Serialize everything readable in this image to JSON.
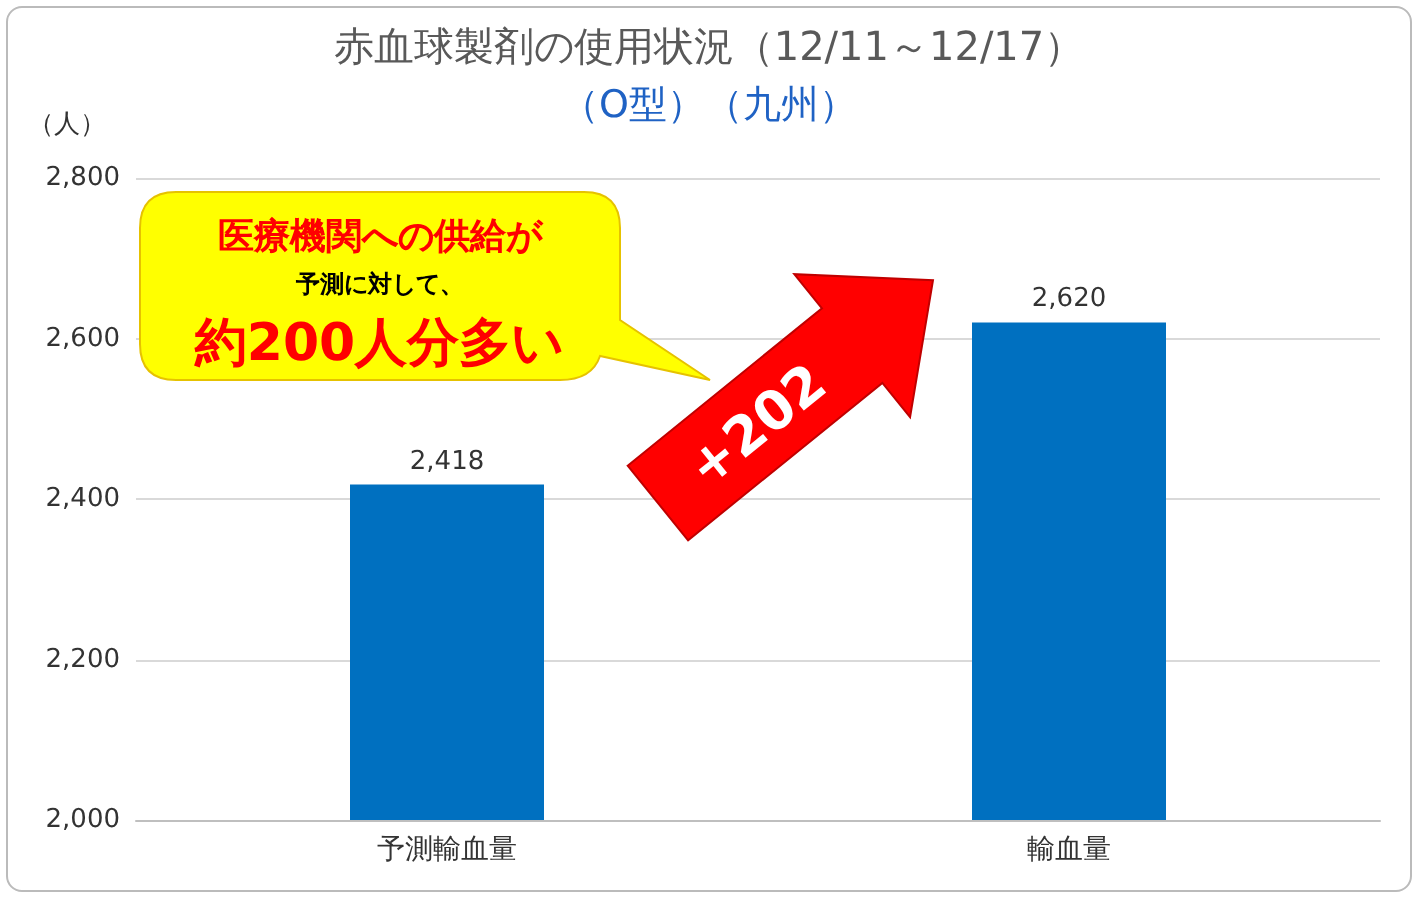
{
  "chart_data": {
    "type": "bar",
    "title": "赤血球製剤の使用状況（12/11～12/17）",
    "subtitle": "（O型）（九州）",
    "ylabel": "（人）",
    "categories": [
      "予測輸血量",
      "輸血量"
    ],
    "values": [
      2418,
      2620
    ],
    "color": "#0070c0",
    "value_labels": [
      "2,418",
      "2,620"
    ],
    "ylim": [
      2000,
      2800
    ],
    "yticks": [
      {
        "value": 2000,
        "label": "2,000"
      },
      {
        "value": 2200,
        "label": "2,200"
      },
      {
        "value": 2400,
        "label": "2,400"
      },
      {
        "value": 2600,
        "label": "2,600"
      },
      {
        "value": 2800,
        "label": "2,800"
      }
    ],
    "grid": "y",
    "annotations": [
      "医療機関への供給が",
      "予測に対して、",
      "約200人分多い",
      "+202"
    ]
  }
}
